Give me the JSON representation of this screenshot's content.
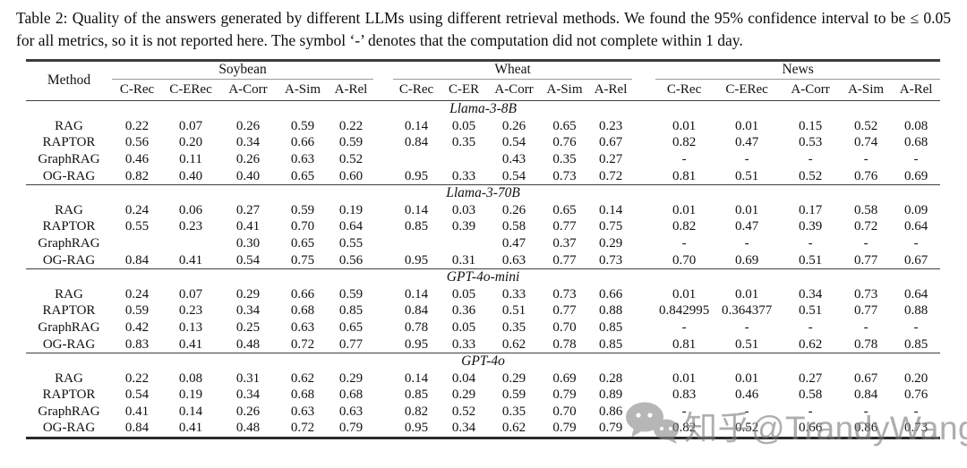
{
  "caption": "Table 2: Quality of the answers generated by different LLMs using different retrieval methods. We found the 95% confidence interval to be ≤ 0.05 for all metrics, so it is not reported here. The symbol ‘-’ denotes that the computation did not complete within 1 day.",
  "watermark": {
    "text": "知乎@TrandyWang",
    "icon": "chat-bubbles-icon",
    "color": "#7d7d7d"
  },
  "table": {
    "method_header": "Method",
    "groups": [
      {
        "label": "Soybean",
        "metrics": [
          "C-Rec",
          "C-ERec",
          "A-Corr",
          "A-Sim",
          "A-Rel"
        ]
      },
      {
        "label": "Wheat",
        "metrics": [
          "C-Rec",
          "C-ER",
          "A-Corr",
          "A-Sim",
          "A-Rel"
        ]
      },
      {
        "label": "News",
        "metrics": [
          "C-Rec",
          "C-ERec",
          "A-Corr",
          "A-Sim",
          "A-Rel"
        ]
      }
    ],
    "blocks": [
      {
        "model": "Llama-3-8B",
        "rows": [
          {
            "method": "RAG",
            "bold_method": 0,
            "v": [
              "0.22",
              "0.07",
              "0.26",
              "0.59",
              "0.22",
              "0.14",
              "0.05",
              "0.26",
              "0.65",
              "0.23",
              "0.01",
              "0.01",
              "0.15",
              "0.52",
              "0.08"
            ],
            "m": [
              0,
              0,
              0,
              0,
              0,
              0,
              0,
              0,
              0,
              0,
              0,
              0,
              0,
              0,
              0
            ]
          },
          {
            "method": "RAPTOR",
            "bold_method": 0,
            "v": [
              "0.56",
              "0.20",
              "0.34",
              "0.66",
              "0.59",
              "0.84",
              "0.35",
              "0.54",
              "0.76",
              "0.67",
              "0.82",
              "0.47",
              "0.53",
              "0.74",
              "0.68"
            ],
            "m": [
              0,
              0,
              0,
              1,
              0,
              0,
              1,
              1,
              1,
              0,
              0,
              0,
              1,
              0,
              0
            ]
          },
          {
            "method": "GraphRAG",
            "bold_method": 0,
            "v": [
              "0.46",
              "0.11",
              "0.26",
              "0.63",
              "0.52",
              "",
              "",
              "0.43",
              "0.35",
              "0.27",
              "-",
              "-",
              "-",
              "-",
              "-"
            ],
            "m": [
              0,
              0,
              0,
              0,
              0,
              0,
              0,
              0,
              0,
              0,
              0,
              0,
              0,
              0,
              0
            ]
          },
          {
            "method": "OG-RAG",
            "bold_method": 1,
            "v": [
              "0.82",
              "0.40",
              "0.40",
              "0.65",
              "0.60",
              "0.95",
              "0.33",
              "0.54",
              "0.73",
              "0.72",
              "0.81",
              "0.51",
              "0.52",
              "0.76",
              "0.69"
            ],
            "m": [
              1,
              1,
              1,
              0,
              1,
              1,
              0,
              1,
              0,
              1,
              0,
              0,
              0,
              1,
              1
            ]
          }
        ]
      },
      {
        "model": "Llama-3-70B",
        "rows": [
          {
            "method": "RAG",
            "bold_method": 0,
            "v": [
              "0.24",
              "0.06",
              "0.27",
              "0.59",
              "0.19",
              "0.14",
              "0.03",
              "0.26",
              "0.65",
              "0.14",
              "0.01",
              "0.01",
              "0.17",
              "0.58",
              "0.09"
            ],
            "m": [
              0,
              0,
              0,
              0,
              0,
              0,
              0,
              0,
              0,
              0,
              0,
              0,
              0,
              0,
              0
            ]
          },
          {
            "method": "RAPTOR",
            "bold_method": 0,
            "v": [
              "0.55",
              "0.23",
              "0.41",
              "0.70",
              "0.64",
              "0.85",
              "0.39",
              "0.58",
              "0.77",
              "0.75",
              "0.82",
              "0.47",
              "0.39",
              "0.72",
              "0.64"
            ],
            "m": [
              0,
              0,
              0,
              0,
              1,
              0,
              1,
              0,
              1,
              1,
              1,
              0,
              0,
              0,
              0
            ]
          },
          {
            "method": "GraphRAG",
            "bold_method": 0,
            "v": [
              "",
              "",
              "0.30",
              "0.65",
              "0.55",
              "",
              "",
              "0.47",
              "0.37",
              "0.29",
              "-",
              "-",
              "-",
              "-",
              "-"
            ],
            "m": [
              0,
              0,
              0,
              0,
              0,
              0,
              0,
              0,
              0,
              0,
              0,
              0,
              0,
              0,
              0
            ]
          },
          {
            "method": "OG-RAG",
            "bold_method": 1,
            "v": [
              "0.84",
              "0.41",
              "0.54",
              "0.75",
              "0.56",
              "0.95",
              "0.31",
              "0.63",
              "0.77",
              "0.73",
              "0.70",
              "0.69",
              "0.51",
              "0.77",
              "0.67"
            ],
            "m": [
              1,
              1,
              1,
              1,
              0,
              1,
              0,
              1,
              1,
              0,
              0,
              1,
              1,
              1,
              1
            ]
          }
        ]
      },
      {
        "model": "GPT-4o-mini",
        "rows": [
          {
            "method": "RAG",
            "bold_method": 0,
            "v": [
              "0.24",
              "0.07",
              "0.29",
              "0.66",
              "0.59",
              "0.14",
              "0.05",
              "0.33",
              "0.73",
              "0.66",
              "0.01",
              "0.01",
              "0.34",
              "0.73",
              "0.64"
            ],
            "m": [
              0,
              0,
              0,
              0,
              0,
              0,
              0,
              0,
              0,
              0,
              0,
              0,
              0,
              0,
              0
            ]
          },
          {
            "method": "RAPTOR",
            "bold_method": 0,
            "v": [
              "0.59",
              "0.23",
              "0.34",
              "0.68",
              "0.85",
              "0.84",
              "0.36",
              "0.51",
              "0.77",
              "0.88",
              "0.842995",
              "0.364377",
              "0.51",
              "0.77",
              "0.88"
            ],
            "m": [
              0,
              0,
              0,
              0,
              1,
              0,
              0,
              0,
              0,
              1,
              0,
              0,
              0,
              0,
              1
            ]
          },
          {
            "method": "GraphRAG",
            "bold_method": 0,
            "v": [
              "0.42",
              "0.13",
              "0.25",
              "0.63",
              "0.65",
              "0.78",
              "0.05",
              "0.35",
              "0.70",
              "0.85",
              "-",
              "-",
              "-",
              "-",
              "-"
            ],
            "m": [
              0,
              0,
              0,
              0,
              0,
              0,
              0,
              0,
              0,
              0,
              0,
              0,
              0,
              0,
              0
            ]
          },
          {
            "method": "OG-RAG",
            "bold_method": 1,
            "v": [
              "0.83",
              "0.41",
              "0.48",
              "0.72",
              "0.77",
              "0.95",
              "0.33",
              "0.62",
              "0.78",
              "0.85",
              "0.81",
              "0.51",
              "0.62",
              "0.78",
              "0.85"
            ],
            "m": [
              1,
              1,
              1,
              1,
              0,
              0,
              0,
              1,
              1,
              0,
              0,
              0,
              1,
              1,
              0
            ]
          }
        ]
      },
      {
        "model": "GPT-4o",
        "rows": [
          {
            "method": "RAG",
            "bold_method": 0,
            "v": [
              "0.22",
              "0.08",
              "0.31",
              "0.62",
              "0.29",
              "0.14",
              "0.04",
              "0.29",
              "0.69",
              "0.28",
              "0.01",
              "0.01",
              "0.27",
              "0.67",
              "0.20"
            ],
            "m": [
              0,
              0,
              0,
              0,
              0,
              0,
              0,
              0,
              0,
              0,
              0,
              0,
              0,
              0,
              0
            ]
          },
          {
            "method": "RAPTOR",
            "bold_method": 0,
            "v": [
              "0.54",
              "0.19",
              "0.34",
              "0.68",
              "0.68",
              "0.85",
              "0.29",
              "0.59",
              "0.79",
              "0.89",
              "0.83",
              "0.46",
              "0.58",
              "0.84",
              "0.76"
            ],
            "m": [
              0,
              0,
              0,
              0,
              0,
              0,
              0,
              0,
              1,
              1,
              0,
              0,
              0,
              0,
              1
            ]
          },
          {
            "method": "GraphRAG",
            "bold_method": 0,
            "v": [
              "0.41",
              "0.14",
              "0.26",
              "0.63",
              "0.63",
              "0.82",
              "0.52",
              "0.35",
              "0.70",
              "0.86",
              "-",
              "-",
              "-",
              "-",
              "-"
            ],
            "m": [
              0,
              0,
              0,
              0,
              0,
              0,
              0,
              0,
              0,
              0,
              0,
              0,
              0,
              0,
              0
            ]
          },
          {
            "method": "OG-RAG",
            "bold_method": 1,
            "v": [
              "0.84",
              "0.41",
              "0.48",
              "0.72",
              "0.79",
              "0.95",
              "0.34",
              "0.62",
              "0.79",
              "0.79",
              "0.82",
              "0.52",
              "0.66",
              "0.86",
              "0.73"
            ],
            "m": [
              1,
              1,
              1,
              1,
              1,
              0,
              0,
              1,
              1,
              0,
              0,
              0,
              1,
              1,
              0
            ]
          }
        ]
      }
    ]
  }
}
